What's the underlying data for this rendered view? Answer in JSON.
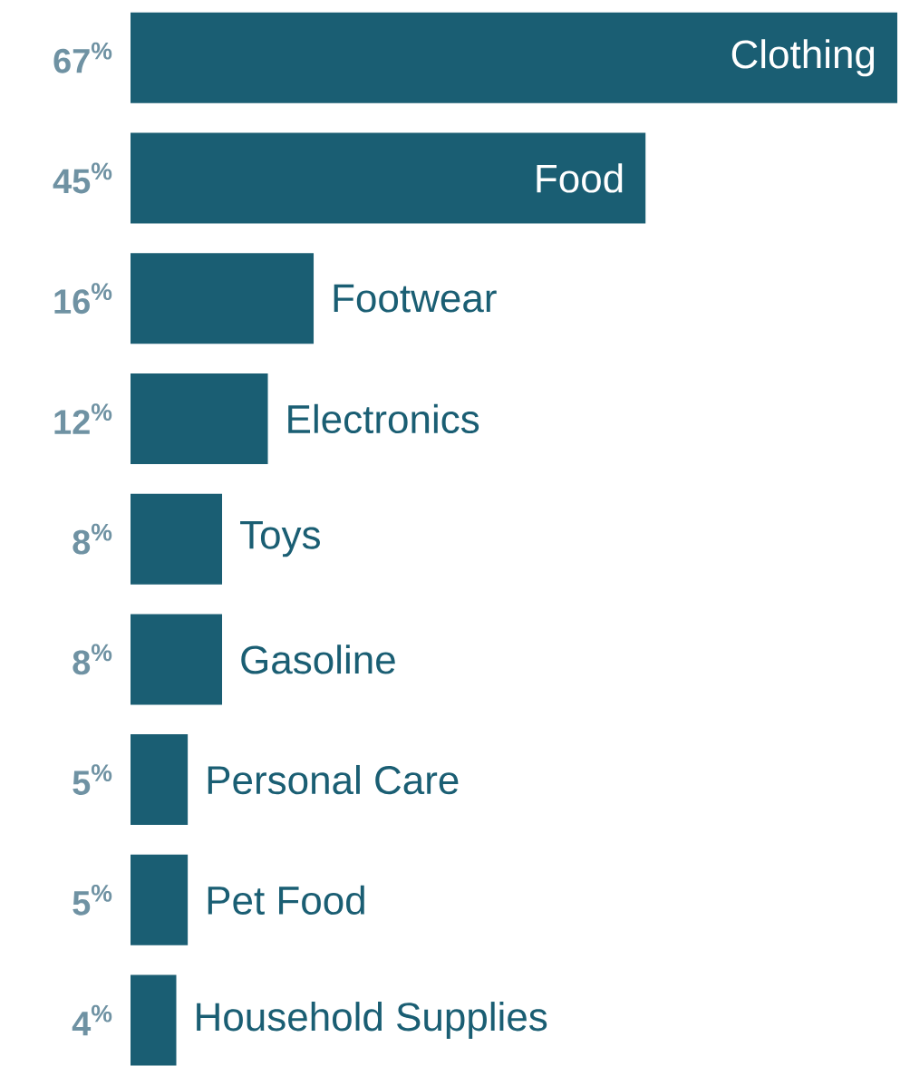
{
  "chart_data": {
    "type": "bar",
    "orientation": "horizontal",
    "categories": [
      "Clothing",
      "Food",
      "Footwear",
      "Electronics",
      "Toys",
      "Gasoline",
      "Personal Care",
      "Pet Food",
      "Household Supplies"
    ],
    "values": [
      67,
      45,
      16,
      12,
      8,
      8,
      5,
      5,
      4
    ],
    "value_labels": [
      "67$^{%}$",
      "45$^{%}$",
      "16$^{%}$",
      "12$^{%}$",
      "8$^{%}$",
      "8$^{%}$",
      "5$^{%}$",
      "5$^{%}$",
      "4$^{%}$"
    ],
    "color": "#1a5e73"
  }
}
